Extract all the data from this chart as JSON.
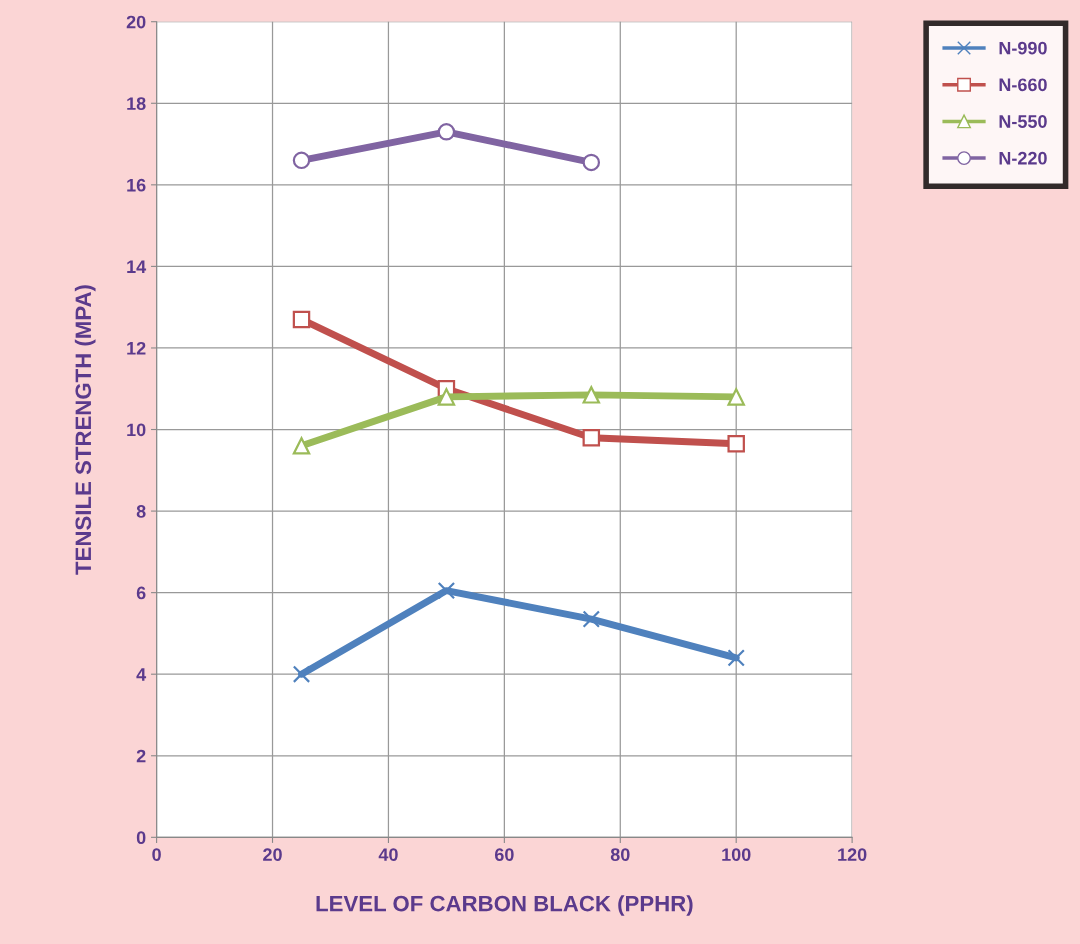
{
  "chart_data": {
    "type": "line",
    "xlabel": "LEVEL OF CARBON BLACK (PPHR)",
    "ylabel": "TENSILE STRENGTH (MPA)",
    "x": [
      25,
      50,
      75,
      100
    ],
    "series": [
      {
        "name": "N-990",
        "color": "#4f81bd",
        "marker": "cross",
        "values": [
          4.0,
          6.05,
          5.35,
          4.4
        ]
      },
      {
        "name": "N-660",
        "color": "#c0504d",
        "marker": "square",
        "values": [
          12.7,
          11.0,
          9.8,
          9.65
        ]
      },
      {
        "name": "N-550",
        "color": "#9bbb59",
        "marker": "triangle",
        "values": [
          9.6,
          10.8,
          10.85,
          10.8
        ]
      },
      {
        "name": "N-220",
        "color": "#8064a2",
        "marker": "circle",
        "values": [
          16.6,
          17.3,
          16.55,
          null
        ]
      }
    ],
    "xlim": [
      0,
      120
    ],
    "xticks": [
      0,
      20,
      40,
      60,
      80,
      100,
      120
    ],
    "ylim": [
      0,
      20
    ],
    "yticks": [
      0,
      2,
      4,
      6,
      8,
      10,
      12,
      14,
      16,
      18,
      20
    ],
    "grid": true,
    "legend": "top right",
    "line_style": "solid"
  }
}
